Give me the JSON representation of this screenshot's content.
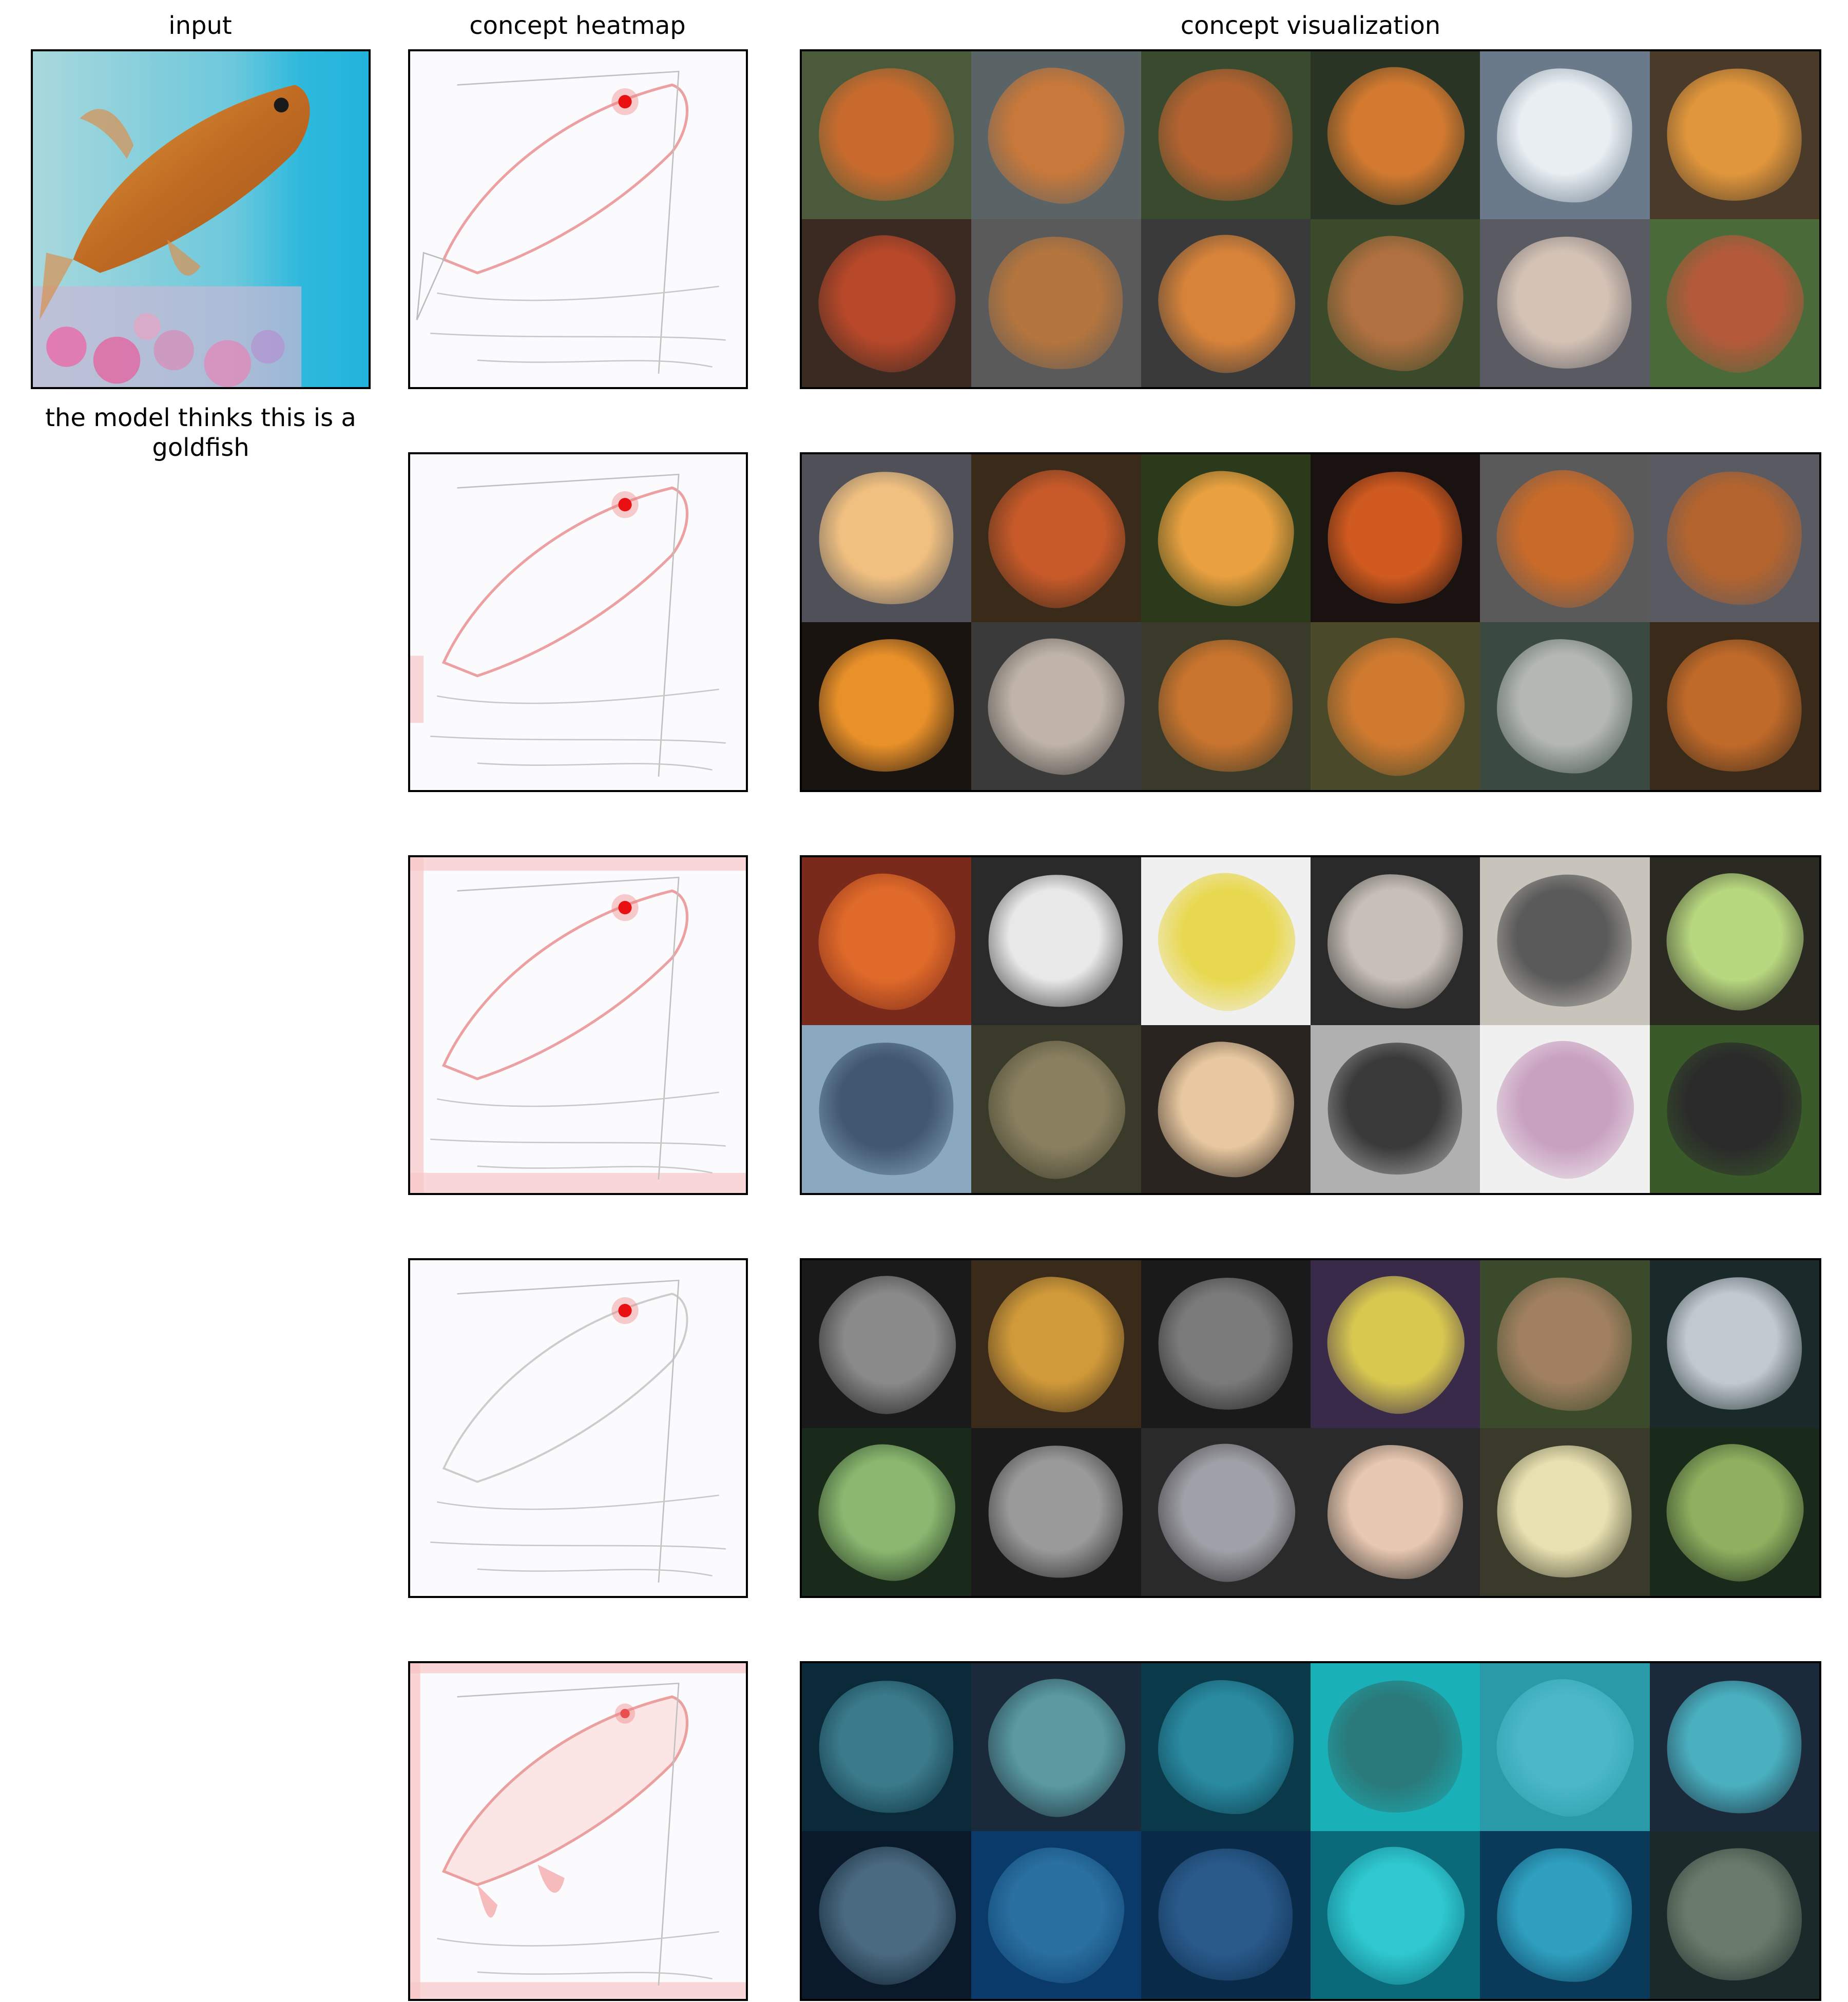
{
  "columns": {
    "input_title": "input",
    "heatmap_title": "concept heatmap",
    "visualization_title": "concept visualization"
  },
  "caption": "the model thinks this is a goldfish",
  "concept_rows": [
    {
      "tiles": [
        [
          "#4a5a3a",
          "#c86a2e"
        ],
        [
          "#5a6466",
          "#c8783a"
        ],
        [
          "#3a4a2e",
          "#b46230"
        ],
        [
          "#2a3424",
          "#d47a30"
        ],
        [
          "#6a7a8a",
          "#e8eef2"
        ],
        [
          "#4a3a2a",
          "#e0963c"
        ],
        [
          "#3a2a22",
          "#b8482a"
        ],
        [
          "#5a5a5a",
          "#b4753e"
        ],
        [
          "#3a3a3a",
          "#d8833a"
        ],
        [
          "#3a4a2a",
          "#b07040"
        ],
        [
          "#5a5a62",
          "#d4c2b4"
        ],
        [
          "#4a6a3a",
          "#b45a3a"
        ]
      ]
    },
    {
      "tiles": [
        [
          "#505058",
          "#f0c080"
        ],
        [
          "#3a2a1a",
          "#c85a2a"
        ],
        [
          "#2a3a1a",
          "#e8a040"
        ],
        [
          "#1a1210",
          "#d05a20"
        ],
        [
          "#5a5a5a",
          "#c86a2a"
        ],
        [
          "#5a5a62",
          "#b4642e"
        ],
        [
          "#1a1410",
          "#e8902a"
        ],
        [
          "#3a3a3a",
          "#c0b4a8"
        ],
        [
          "#3a3a2a",
          "#c8742e"
        ],
        [
          "#4a4a2a",
          "#d07a30"
        ],
        [
          "#3a4a42",
          "#b4b8b4"
        ],
        [
          "#3a2a1a",
          "#c06a2a"
        ]
      ]
    },
    {
      "tiles": [
        [
          "#7a2a1a",
          "#e06a2a"
        ],
        [
          "#2a2a2a",
          "#e8e8e8"
        ],
        [
          "#f0f0f0",
          "#e8d850"
        ],
        [
          "#2a2a2a",
          "#c8c0b8"
        ],
        [
          "#c8c4bc",
          "#5a5a5a"
        ],
        [
          "#2a2a22",
          "#b8d880"
        ],
        [
          "#8aa8c0",
          "#405870"
        ],
        [
          "#3a3a2a",
          "#8a8060"
        ],
        [
          "#2a2420",
          "#e8c8a0"
        ],
        [
          "#b0b0b0",
          "#3a3a3a"
        ],
        [
          "#f0f0f0",
          "#c8a0c0"
        ],
        [
          "#3a5a2a",
          "#2a2a2a"
        ]
      ]
    },
    {
      "tiles": [
        [
          "#1a1a1a",
          "#8a8a8a"
        ],
        [
          "#3a2a1a",
          "#d09a3a"
        ],
        [
          "#1a1a1a",
          "#7a7a7a"
        ],
        [
          "#3a2a4a",
          "#d8c850"
        ],
        [
          "#3a4a2a",
          "#a08060"
        ],
        [
          "#1a2a2a",
          "#c0c8d0"
        ],
        [
          "#1a2a1a",
          "#8ab870"
        ],
        [
          "#1a1a1a",
          "#9a9a9a"
        ],
        [
          "#2a2a2a",
          "#a0a0a8"
        ],
        [
          "#2a2a2a",
          "#e8c8b0"
        ],
        [
          "#3a3a2a",
          "#e8e0b0"
        ],
        [
          "#1a2a1a",
          "#90b060"
        ]
      ]
    },
    {
      "tiles": [
        [
          "#0a2a3a",
          "#3a7a8a"
        ],
        [
          "#1a2a3a",
          "#5a9aa0"
        ],
        [
          "#0a3a4a",
          "#2a8aa0"
        ],
        [
          "#1ab0b8",
          "#2a7a7a"
        ],
        [
          "#2a9aa8",
          "#4ab8c8"
        ],
        [
          "#1a2a3a",
          "#4ab0c0"
        ],
        [
          "#0a1a2a",
          "#4a6a80"
        ],
        [
          "#0a3a6a",
          "#2a70a0"
        ],
        [
          "#0a2a4a",
          "#2a5a8a"
        ],
        [
          "#0a6a7a",
          "#30c8d0"
        ],
        [
          "#0a3a5a",
          "#30a0c0"
        ],
        [
          "#1a2a2a",
          "#6a7a6a"
        ]
      ]
    }
  ]
}
